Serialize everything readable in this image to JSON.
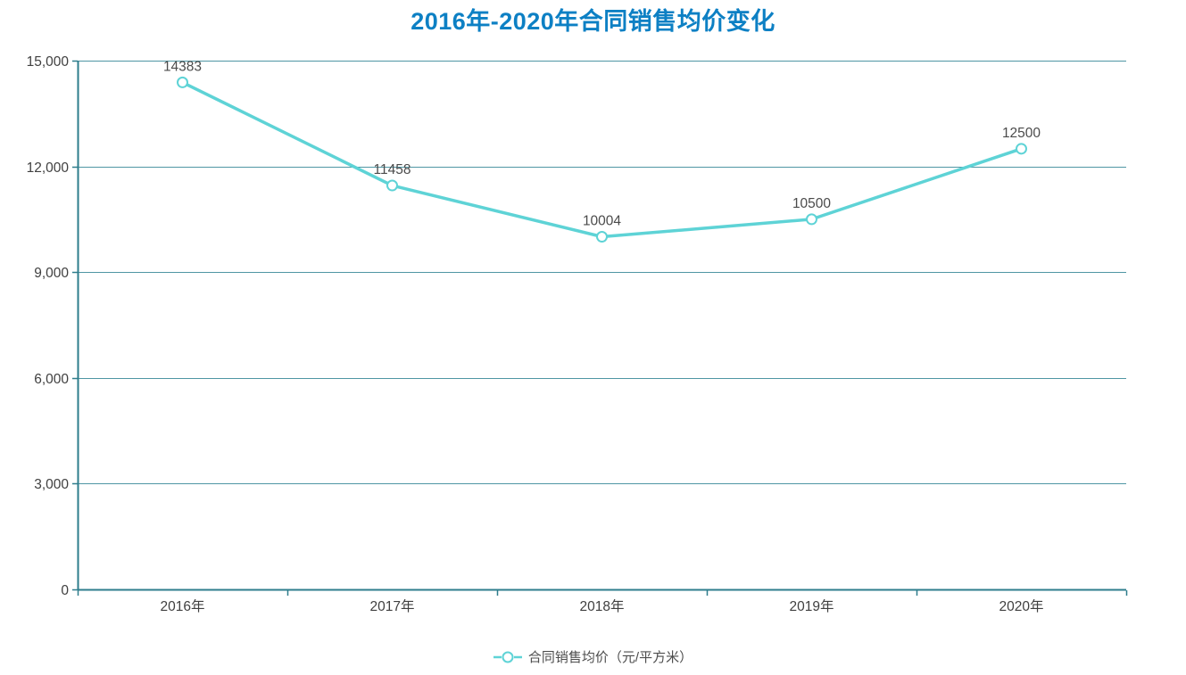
{
  "title": "2016年-2020年合同销售均价变化",
  "legend": {
    "label": "合同销售均价（元/平方米）"
  },
  "colors": {
    "title": "#0d80c4",
    "line": "#5ed3d6",
    "marker_fill": "#ffffff",
    "axis": "#2e7d8c",
    "grid": "#4f96a4",
    "tick_label": "#404040",
    "point_label": "#4b4b4b",
    "legend_text": "#4d4d4d",
    "background": "#ffffff"
  },
  "chart_data": {
    "type": "line",
    "title": "2016年-2020年合同销售均价变化",
    "categories": [
      "2016年",
      "2017年",
      "2018年",
      "2019年",
      "2020年"
    ],
    "series": [
      {
        "name": "合同销售均价（元/平方米）",
        "values": [
          14383,
          11458,
          10004,
          10500,
          12500
        ]
      }
    ],
    "xlabel": "",
    "ylabel": "",
    "ylim": [
      0,
      15000
    ],
    "ytick_interval": 3000,
    "ytick_labels": [
      "0",
      "3,000",
      "6,000",
      "9,000",
      "12,000",
      "15,000"
    ],
    "grid": true,
    "data_labels": true,
    "legend_position": "bottom"
  }
}
